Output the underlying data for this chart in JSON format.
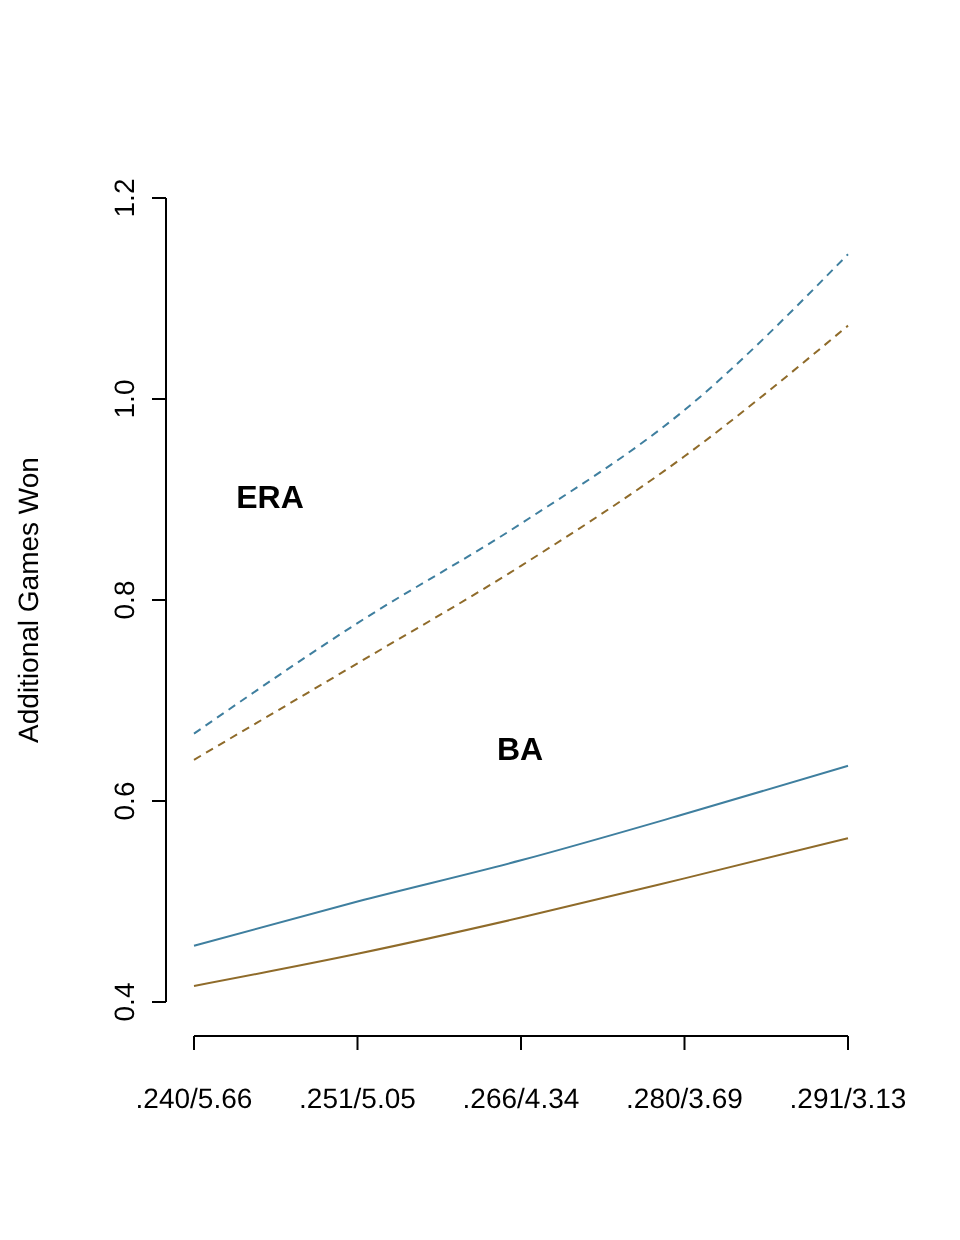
{
  "chart_data": {
    "type": "line",
    "ylabel": "Additional Games Won",
    "categories": [
      ".240/5.66",
      ".251/5.05",
      ".266/4.34",
      ".280/3.69",
      ".291/3.13"
    ],
    "series": [
      {
        "color": "#3f7f9f",
        "line_style": "dashed",
        "values": [
          0.667,
          0.777,
          0.876,
          0.989,
          1.144
        ]
      },
      {
        "color": "#8f6b2a",
        "line_style": "dashed",
        "values": [
          0.641,
          0.737,
          0.834,
          0.943,
          1.073
        ]
      },
      {
        "color": "#3f7f9f",
        "line_style": "solid",
        "values": [
          0.456,
          0.5,
          0.541,
          0.587,
          0.635
        ]
      },
      {
        "color": "#8f6b2a",
        "line_style": "solid",
        "values": [
          0.416,
          0.448,
          0.484,
          0.523,
          0.563
        ]
      }
    ],
    "annotations": [
      "ERA",
      "BA"
    ],
    "ylim": [
      0.4,
      1.2
    ],
    "yticks": [
      {
        "value": 0.4,
        "label": "0.4"
      },
      {
        "value": 0.6,
        "label": "0.6"
      },
      {
        "value": 0.8,
        "label": "0.8"
      },
      {
        "value": 1.0,
        "label": "1.0"
      },
      {
        "value": 1.2,
        "label": "1.2"
      }
    ],
    "grid": false
  }
}
